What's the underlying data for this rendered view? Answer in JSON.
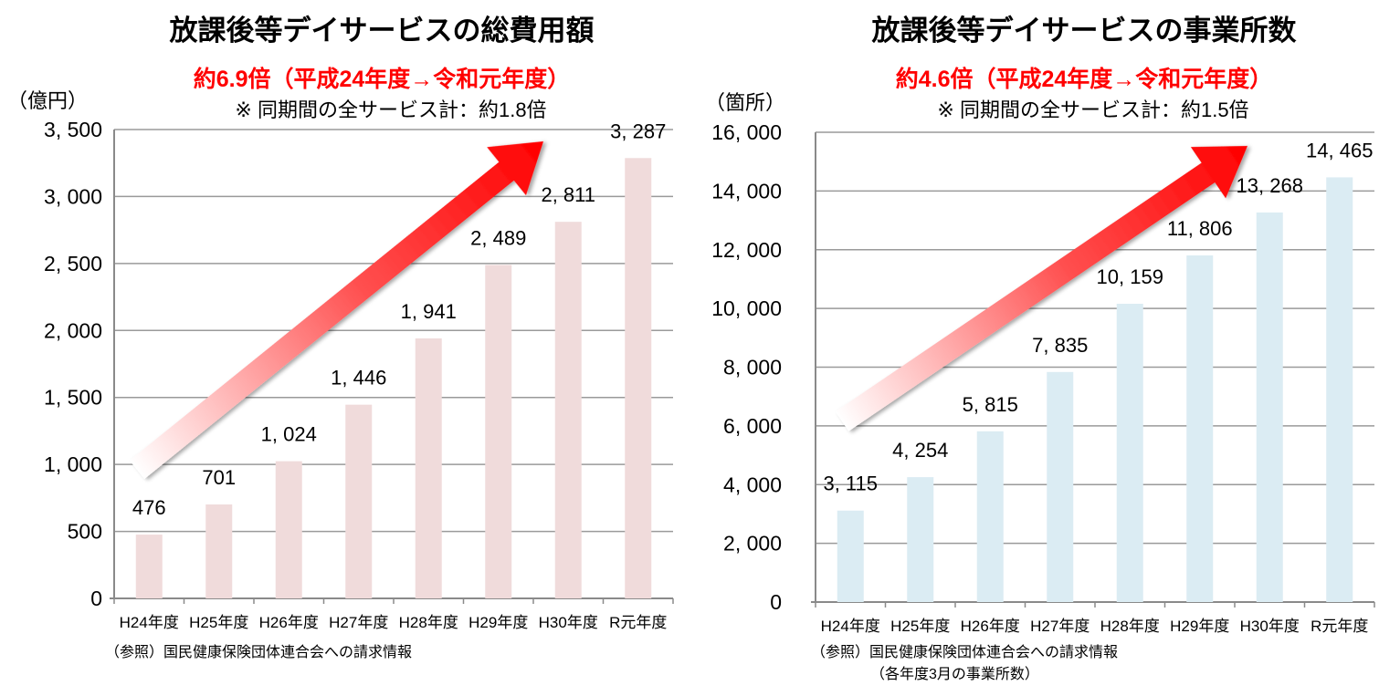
{
  "chart_data": [
    {
      "type": "bar",
      "title": "放課後等デイサービスの総費用額",
      "subtitle": "約6.9倍（平成24年度→令和元年度）",
      "note": "※ 同期間の全サービス計：約1.8倍",
      "ylabel": "（億円）",
      "categories": [
        "H24年度",
        "H25年度",
        "H26年度",
        "H27年度",
        "H28年度",
        "H29年度",
        "H30年度",
        "R元年度"
      ],
      "values": [
        476,
        701,
        1024,
        1446,
        1941,
        2489,
        2811,
        3287
      ],
      "data_labels": [
        "476",
        "701",
        "1,024",
        "1,446",
        "1,941",
        "2,489",
        "2,811",
        "3,287"
      ],
      "yticks": [
        "0",
        "500",
        "1,000",
        "1,500",
        "2,000",
        "2,500",
        "3,000",
        "3,500"
      ],
      "ylim": [
        0,
        3500
      ],
      "grid": true,
      "bar_color": "#f0dbdb",
      "arrow_color": "#ff0000",
      "source": "（参照）国民健康保険団体連合会への請求情報"
    },
    {
      "type": "bar",
      "title": "放課後等デイサービスの事業所数",
      "subtitle": "約4.6倍（平成24年度→令和元年度）",
      "note": "※ 同期間の全サービス計：約1.5倍",
      "ylabel": "（箇所）",
      "categories": [
        "H24年度",
        "H25年度",
        "H26年度",
        "H27年度",
        "H28年度",
        "H29年度",
        "H30年度",
        "R元年度"
      ],
      "values": [
        3115,
        4254,
        5815,
        7835,
        10159,
        11806,
        13268,
        14465
      ],
      "data_labels": [
        "3,115",
        "4,254",
        "5,815",
        "7,835",
        "10,159",
        "11,806",
        "13,268",
        "14,465"
      ],
      "yticks": [
        "0",
        "2,000",
        "4,000",
        "6,000",
        "8,000",
        "10,000",
        "12,000",
        "14,000",
        "16,000"
      ],
      "ylim": [
        0,
        16000
      ],
      "grid": true,
      "bar_color": "#dbecf3",
      "arrow_color": "#ff0000",
      "source": "（参照）国民健康保険団体連合会への請求情報",
      "source_note": "（各年度3月の事業所数）"
    }
  ]
}
